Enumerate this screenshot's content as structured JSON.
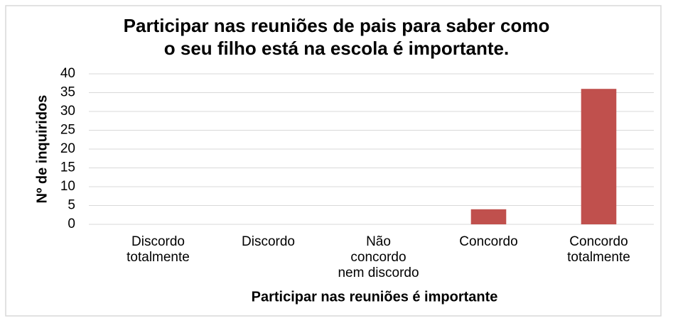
{
  "chart_data": {
    "type": "bar",
    "title": "Participar nas reuniões de pais para saber como\no seu filho está na escola é importante.",
    "x_label": "Participar nas reuniões é importante",
    "y_label": "Nº de inquiridos",
    "categories": [
      "Discordo\ntotalmente",
      "Discordo",
      "Não\nconcordo\nnem discordo",
      "Concordo",
      "Concordo\ntotalmente"
    ],
    "values": [
      0,
      0,
      0,
      4,
      36
    ],
    "color": "#c0504d",
    "ylim": [
      0,
      40
    ],
    "yticks": [
      0,
      5,
      10,
      15,
      20,
      25,
      30,
      35,
      40
    ],
    "grid": true
  }
}
